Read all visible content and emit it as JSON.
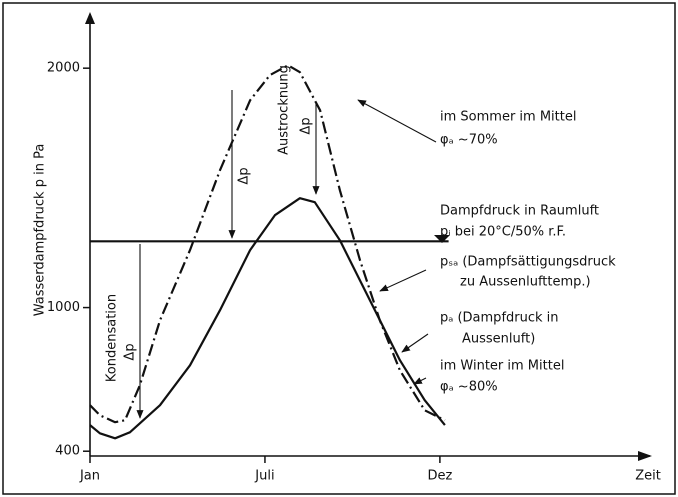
{
  "chart_data": {
    "type": "line",
    "ylabel": "Wasserdampfdruck p in Pa",
    "xlabel": "Zeit",
    "xlim": [
      0,
      19
    ],
    "xticks": [
      {
        "value": 0,
        "label": "Jan"
      },
      {
        "value": 6,
        "label": "Juli"
      },
      {
        "value": 12,
        "label": "Dez"
      }
    ],
    "ylim": [
      380,
      2200
    ],
    "yticks": [
      400,
      1000,
      2000
    ],
    "series": [
      {
        "color": "#111111",
        "style": "dashdot",
        "x": [
          0,
          0.34,
          0.86,
          1.2,
          1.71,
          2.4,
          3.43,
          4.46,
          5.49,
          6.17,
          6.79,
          7.2,
          7.89,
          8.57,
          9.26,
          9.94,
          10.63,
          11.48,
          12.17
        ],
        "values": [
          592,
          550,
          521,
          529,
          676,
          947,
          1240,
          1574,
          1866,
          1971,
          2012,
          1983,
          1824,
          1490,
          1198,
          947,
          738,
          571,
          529
        ]
      },
      {
        "color": "#111111",
        "style": "solid",
        "x": [
          0,
          0.34,
          0.86,
          1.37,
          2.4,
          3.43,
          4.46,
          5.49,
          6.34,
          7.2,
          7.71,
          8.57,
          9.6,
          10.63,
          11.48,
          12.17
        ],
        "values": [
          509,
          475,
          454,
          479,
          592,
          759,
          989,
          1240,
          1386,
          1457,
          1440,
          1281,
          1031,
          780,
          613,
          509
        ]
      },
      {
        "color": "#111111",
        "style": "solid",
        "x": [
          0,
          12.3
        ],
        "values": [
          1277,
          1277
        ]
      }
    ],
    "annotations": [
      "Austrocknung",
      "Δp",
      "Δp",
      "Kondensation",
      "Δp",
      "im Sommer im Mittel",
      "φₐ ~70%",
      "Dampfdruck in Raumluft",
      "pᵢ bei 20°C/50% r.F.",
      "pₛₐ (Dampfsättigungsdruck",
      "zu Aussenlufttemp.)",
      "pₐ  (Dampfdruck in",
      "Aussenluft)",
      "im Winter im Mittel",
      "φₐ ~80%"
    ]
  }
}
